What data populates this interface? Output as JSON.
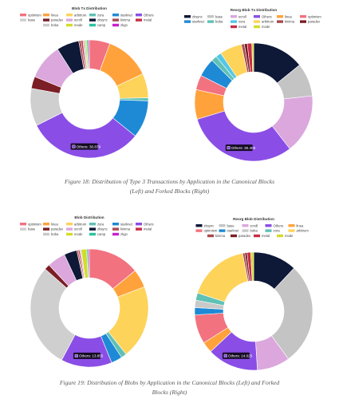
{
  "chart_data": [
    {
      "type": "pie",
      "subtype": "doughnut",
      "title": "Blob Tx Distribution",
      "categories": [
        "optimism",
        "linea",
        "arbitrum",
        "zora",
        "starknet",
        "Others",
        "base",
        "paradex",
        "scroll",
        "zksync",
        "kinima",
        "metal",
        "boba",
        "mode",
        "camp",
        "zkgn"
      ],
      "colors": [
        "#f2727f",
        "#ffa23b",
        "#fed35a",
        "#5fc1b6",
        "#1e8ad6",
        "#8a4ee6",
        "#cfcfcf",
        "#7b1e25",
        "#dba7dd",
        "#0e1837",
        "#a84a4f",
        "#c72d44",
        "#c9c9c9",
        "#d4db2c",
        "#2cc2a0",
        "#c91fcf"
      ],
      "values": [
        5.5,
        12.0,
        6.5,
        0.8,
        10.0,
        30.879,
        10.0,
        3.2,
        9.5,
        6.0,
        0.6,
        0.5,
        0.6,
        0.4,
        0.4,
        0.3
      ],
      "tooltip": "Others: 30.879"
    },
    {
      "type": "pie",
      "subtype": "doughnut",
      "title": "Reorg Blob Tx Distribution",
      "categories": [
        "zksync",
        "base",
        "scroll",
        "Others",
        "linea",
        "optimism",
        "starknet",
        "boba",
        "zora",
        "arbitrum",
        "kinima",
        "paradex",
        "metal",
        "mode"
      ],
      "colors": [
        "#0e1837",
        "#c4c4c4",
        "#dba7dd",
        "#8a4ee6",
        "#ffa23b",
        "#f2727f",
        "#1e8ad6",
        "#5fc1b6",
        "#55c7e6",
        "#fed35a",
        "#a84a4f",
        "#7b1e25",
        "#c72d44",
        "#d4db2c"
      ],
      "values": [
        14.0,
        9.0,
        16.0,
        30.406,
        8.0,
        4.0,
        5.0,
        1.5,
        1.5,
        6.0,
        0.8,
        0.8,
        1.2,
        0.5
      ],
      "tooltip": "Others: 30.406"
    },
    {
      "type": "pie",
      "subtype": "doughnut",
      "title": "Blob Distribution",
      "categories": [
        "optimism",
        "linea",
        "arbitrum",
        "zora",
        "starknet",
        "Others",
        "base",
        "paradex",
        "scroll",
        "zksync",
        "kinima",
        "metal",
        "boba",
        "mode",
        "camp",
        "zkgn"
      ],
      "colors": [
        "#f2727f",
        "#ffa23b",
        "#fed35a",
        "#5fc1b6",
        "#1e8ad6",
        "#8a4ee6",
        "#cfcfcf",
        "#7b1e25",
        "#dba7dd",
        "#0e1837",
        "#a84a4f",
        "#c72d44",
        "#c9c9c9",
        "#d4db2c",
        "#2cc2a0",
        "#c91fcf"
      ],
      "values": [
        14.0,
        5.0,
        20.0,
        1.5,
        3.0,
        13.855,
        28.5,
        1.5,
        5.0,
        3.5,
        0.4,
        0.4,
        0.4,
        1.5,
        0.4,
        0.3
      ],
      "tooltip": "Others: 13.855"
    },
    {
      "type": "pie",
      "subtype": "doughnut",
      "title": "Reorg Blob Distribution",
      "categories": [
        "zksync",
        "base",
        "scroll",
        "Others",
        "linea",
        "optimism",
        "starknet",
        "boba",
        "zora",
        "arbitrum",
        "kinima",
        "paradex",
        "metal",
        "mode"
      ],
      "colors": [
        "#0e1837",
        "#c4c4c4",
        "#dba7dd",
        "#8a4ee6",
        "#ffa23b",
        "#f2727f",
        "#1e8ad6",
        "#c9c9c9",
        "#5fc1b6",
        "#fed35a",
        "#a84a4f",
        "#7b1e25",
        "#c72d44",
        "#d4db2c"
      ],
      "values": [
        12.0,
        28.0,
        9.0,
        14.025,
        3.0,
        8.0,
        2.0,
        2.0,
        2.0,
        17.0,
        0.6,
        0.6,
        1.0,
        0.8
      ],
      "tooltip": "Others: 14.025"
    }
  ],
  "captions": {
    "figure18_line1": "Figure 18: Distribution of Type 3 Transactions by Application in the Canonical Blocks",
    "figure18_line2": "(Left) and Forked Blocks (Right)",
    "figure19_line1": "Figure 19: Distribution of Blobs by Application in the Canonical Blocks (Left) and Forked",
    "figure19_line2": "Blocks (Right)"
  }
}
